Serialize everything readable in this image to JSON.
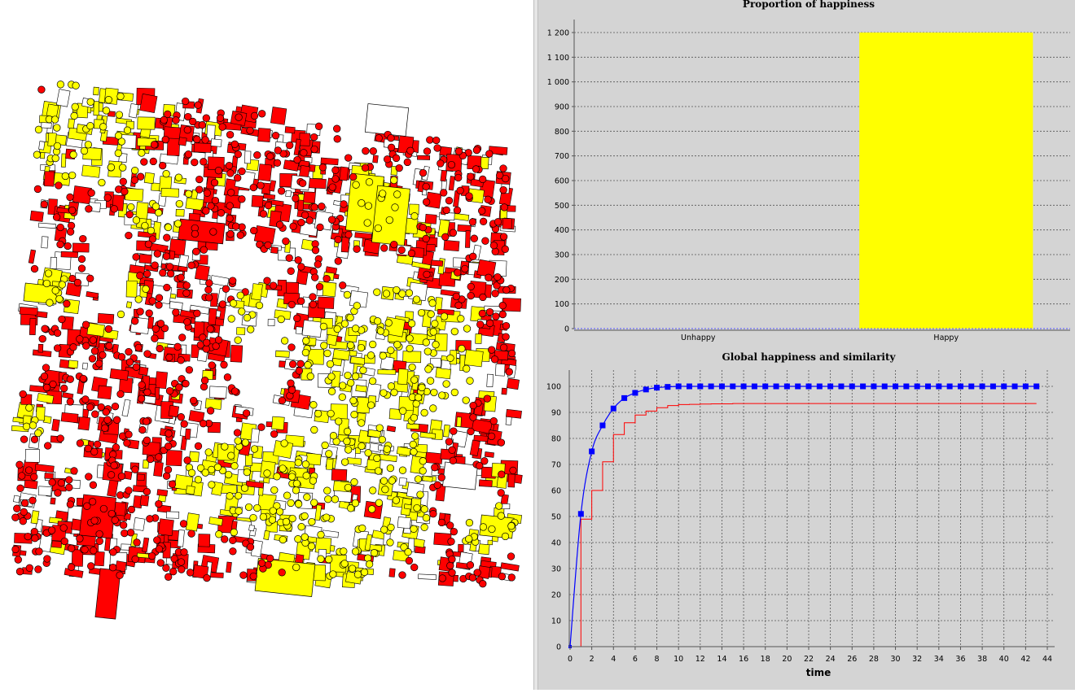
{
  "map": {
    "colors": {
      "group_a": "#ff0000",
      "group_b": "#ffff00",
      "empty": "#ffffff",
      "outline": "#000000",
      "background": "#ffffff"
    }
  },
  "chart_data": [
    {
      "type": "bar",
      "title": "Proportion of happiness",
      "categories": [
        "Unhappy",
        "Happy"
      ],
      "values": [
        0,
        1200
      ],
      "ylim": [
        0,
        1200
      ],
      "y_ticks": [
        0,
        100,
        200,
        300,
        400,
        500,
        600,
        700,
        800,
        900,
        1000,
        1100,
        1200
      ],
      "y_tick_labels": [
        "0",
        "100",
        "200",
        "300",
        "400",
        "500",
        "600",
        "700",
        "800",
        "900",
        "1 000",
        "1 100",
        "1 200"
      ],
      "bar_color": "#ffff00",
      "background": "#d4d4d4",
      "grid": true
    },
    {
      "type": "line",
      "title": "Global happiness and similarity",
      "xlabel": "time",
      "ylabel": "",
      "xlim": [
        0,
        44
      ],
      "ylim": [
        0,
        100
      ],
      "x_ticks": [
        0,
        2,
        4,
        6,
        8,
        10,
        12,
        14,
        16,
        18,
        20,
        22,
        24,
        26,
        28,
        30,
        32,
        34,
        36,
        38,
        40,
        42,
        44
      ],
      "y_ticks": [
        0,
        10,
        20,
        30,
        40,
        50,
        60,
        70,
        80,
        90,
        100
      ],
      "grid": true,
      "background": "#d4d4d4",
      "series": [
        {
          "color": "#0000ff",
          "style": "smooth-line-square-markers",
          "x": [
            0,
            1,
            2,
            3,
            4,
            5,
            6,
            7,
            8,
            9,
            10,
            11,
            12,
            13,
            14,
            15,
            16,
            17,
            18,
            19,
            20,
            21,
            22,
            23,
            24,
            25,
            26,
            27,
            28,
            29,
            30,
            31,
            32,
            33,
            34,
            35,
            36,
            37,
            38,
            39,
            40,
            41,
            42,
            43
          ],
          "values": [
            0,
            51,
            75,
            85,
            91.5,
            95.5,
            97.5,
            98.8,
            99.5,
            99.8,
            100,
            100,
            100,
            100,
            100,
            100,
            100,
            100,
            100,
            100,
            100,
            100,
            100,
            100,
            100,
            100,
            100,
            100,
            100,
            100,
            100,
            100,
            100,
            100,
            100,
            100,
            100,
            100,
            100,
            100,
            100,
            100,
            100,
            100
          ]
        },
        {
          "color": "#ff0000",
          "style": "step-line",
          "x": [
            0,
            1,
            2,
            3,
            4,
            5,
            6,
            7,
            8,
            9,
            10,
            11,
            12,
            13,
            14,
            15,
            16,
            17,
            18,
            19,
            20,
            21,
            22,
            23,
            24,
            25,
            26,
            27,
            28,
            29,
            30,
            31,
            32,
            33,
            34,
            35,
            36,
            37,
            38,
            39,
            40,
            41,
            42,
            43
          ],
          "values": [
            0,
            49,
            60,
            71,
            81.5,
            86,
            89,
            90.5,
            91.8,
            92.6,
            93,
            93.1,
            93.2,
            93.3,
            93.3,
            93.4,
            93.4,
            93.4,
            93.4,
            93.4,
            93.4,
            93.4,
            93.4,
            93.4,
            93.4,
            93.4,
            93.4,
            93.4,
            93.4,
            93.4,
            93.4,
            93.4,
            93.4,
            93.4,
            93.4,
            93.4,
            93.4,
            93.4,
            93.4,
            93.4,
            93.4,
            93.4,
            93.4,
            93.4
          ]
        }
      ]
    }
  ]
}
